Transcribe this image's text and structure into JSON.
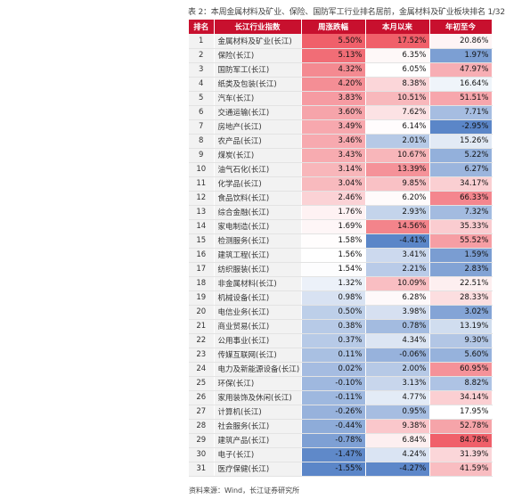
{
  "caption": "表 2：本周金属材料及矿业、保险、国防军工行业排名居前，金属材料及矿业板块排名 1/32",
  "headers": [
    "排名",
    "长江行业指数",
    "周涨跌幅",
    "本月以来",
    "年初至今"
  ],
  "rows": [
    {
      "rank": "1",
      "name": "金属材料及矿业(长江)",
      "week": "5.50%",
      "month": "17.52%",
      "ytd": "20.86%"
    },
    {
      "rank": "2",
      "name": "保险(长江)",
      "week": "5.13%",
      "month": "6.35%",
      "ytd": "1.97%"
    },
    {
      "rank": "3",
      "name": "国防军工(长江)",
      "week": "4.32%",
      "month": "6.05%",
      "ytd": "47.97%"
    },
    {
      "rank": "4",
      "name": "纸类及包装(长江)",
      "week": "4.20%",
      "month": "8.38%",
      "ytd": "16.64%"
    },
    {
      "rank": "5",
      "name": "汽车(长江)",
      "week": "3.83%",
      "month": "10.51%",
      "ytd": "51.51%"
    },
    {
      "rank": "6",
      "name": "交通运输(长江)",
      "week": "3.60%",
      "month": "7.62%",
      "ytd": "7.71%"
    },
    {
      "rank": "7",
      "name": "房地产(长江)",
      "week": "3.49%",
      "month": "6.14%",
      "ytd": "-2.95%"
    },
    {
      "rank": "8",
      "name": "农产品(长江)",
      "week": "3.46%",
      "month": "2.01%",
      "ytd": "15.26%"
    },
    {
      "rank": "9",
      "name": "煤炭(长江)",
      "week": "3.43%",
      "month": "10.67%",
      "ytd": "5.22%"
    },
    {
      "rank": "10",
      "name": "油气石化(长江)",
      "week": "3.14%",
      "month": "13.39%",
      "ytd": "6.27%"
    },
    {
      "rank": "11",
      "name": "化学品(长江)",
      "week": "3.04%",
      "month": "9.85%",
      "ytd": "34.17%"
    },
    {
      "rank": "12",
      "name": "食品饮料(长江)",
      "week": "2.46%",
      "month": "6.20%",
      "ytd": "66.33%"
    },
    {
      "rank": "13",
      "name": "综合金融(长江)",
      "week": "1.76%",
      "month": "2.93%",
      "ytd": "7.32%"
    },
    {
      "rank": "14",
      "name": "家电制造(长江)",
      "week": "1.69%",
      "month": "14.56%",
      "ytd": "35.33%"
    },
    {
      "rank": "15",
      "name": "检测服务(长江)",
      "week": "1.58%",
      "month": "-4.41%",
      "ytd": "55.52%"
    },
    {
      "rank": "16",
      "name": "建筑工程(长江)",
      "week": "1.56%",
      "month": "3.41%",
      "ytd": "1.59%"
    },
    {
      "rank": "17",
      "name": "纺织服装(长江)",
      "week": "1.54%",
      "month": "2.21%",
      "ytd": "2.83%"
    },
    {
      "rank": "18",
      "name": "非金属材料(长江)",
      "week": "1.32%",
      "month": "10.09%",
      "ytd": "22.51%"
    },
    {
      "rank": "19",
      "name": "机械设备(长江)",
      "week": "0.98%",
      "month": "6.28%",
      "ytd": "28.33%"
    },
    {
      "rank": "20",
      "name": "电信业务(长江)",
      "week": "0.50%",
      "month": "3.98%",
      "ytd": "3.02%"
    },
    {
      "rank": "21",
      "name": "商业贸易(长江)",
      "week": "0.38%",
      "month": "0.78%",
      "ytd": "13.19%"
    },
    {
      "rank": "22",
      "name": "公用事业(长江)",
      "week": "0.37%",
      "month": "4.34%",
      "ytd": "9.30%"
    },
    {
      "rank": "23",
      "name": "传媒互联网(长江)",
      "week": "0.11%",
      "month": "-0.06%",
      "ytd": "5.60%"
    },
    {
      "rank": "24",
      "name": "电力及新能源设备(长江)",
      "week": "0.02%",
      "month": "2.00%",
      "ytd": "60.95%"
    },
    {
      "rank": "25",
      "name": "环保(长江)",
      "week": "-0.10%",
      "month": "3.13%",
      "ytd": "8.82%"
    },
    {
      "rank": "26",
      "name": "家用装饰及休闲(长江)",
      "week": "-0.11%",
      "month": "4.77%",
      "ytd": "34.14%"
    },
    {
      "rank": "27",
      "name": "计算机(长江)",
      "week": "-0.26%",
      "month": "0.95%",
      "ytd": "17.95%"
    },
    {
      "rank": "28",
      "name": "社会服务(长江)",
      "week": "-0.44%",
      "month": "9.38%",
      "ytd": "52.78%"
    },
    {
      "rank": "29",
      "name": "建筑产品(长江)",
      "week": "-0.78%",
      "month": "6.84%",
      "ytd": "84.78%"
    },
    {
      "rank": "30",
      "name": "电子(长江)",
      "week": "-1.47%",
      "month": "4.24%",
      "ytd": "31.39%"
    },
    {
      "rank": "31",
      "name": "医疗保健(长江)",
      "week": "-1.55%",
      "month": "-4.27%",
      "ytd": "41.59%"
    }
  ],
  "source": "资料来源：Wind，长江证券研究所",
  "colors": {
    "header_bg": "#c8102e",
    "positive_max": "#f0606a",
    "neutral": "#ffffff",
    "negative_max": "#5b86c8"
  }
}
